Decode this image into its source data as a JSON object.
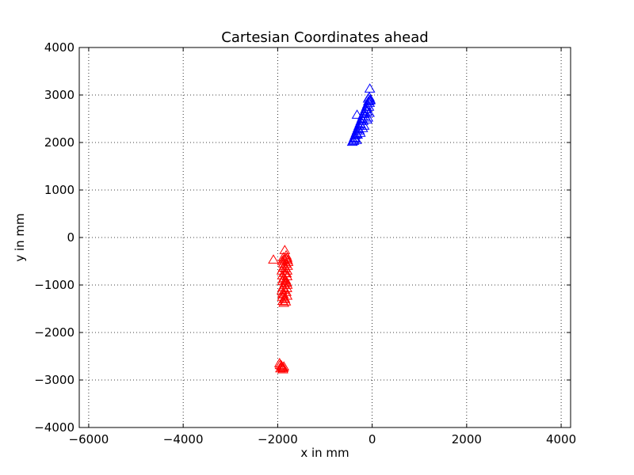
{
  "chart_data": {
    "type": "scatter",
    "title": "Cartesian Coordinates ahead",
    "xlabel": "x in mm",
    "ylabel": "y in mm",
    "xlim": [
      -6200,
      4200
    ],
    "ylim": [
      -4000,
      4000
    ],
    "xticks": [
      -6000,
      -4000,
      -2000,
      0,
      2000,
      4000
    ],
    "yticks": [
      -4000,
      -3000,
      -2000,
      -1000,
      0,
      1000,
      2000,
      3000,
      4000
    ],
    "xtick_labels": [
      "−6000",
      "−4000",
      "−2000",
      "0",
      "2000",
      "4000"
    ],
    "ytick_labels": [
      "−4000",
      "−3000",
      "−2000",
      "−1000",
      "0",
      "1000",
      "2000",
      "3000",
      "4000"
    ],
    "grid": true,
    "marker": "triangle-open",
    "series": [
      {
        "color": "#0000ff",
        "points": [
          [
            -50,
            3130
          ],
          [
            -320,
            2580
          ],
          [
            -60,
            2950
          ],
          [
            -40,
            2900
          ],
          [
            -80,
            2860
          ],
          [
            -100,
            2800
          ],
          [
            -120,
            2750
          ],
          [
            -140,
            2700
          ],
          [
            -160,
            2650
          ],
          [
            -180,
            2600
          ],
          [
            -200,
            2550
          ],
          [
            -220,
            2500
          ],
          [
            -240,
            2450
          ],
          [
            -260,
            2400
          ],
          [
            -280,
            2350
          ],
          [
            -300,
            2300
          ],
          [
            -320,
            2250
          ],
          [
            -340,
            2200
          ],
          [
            -360,
            2150
          ],
          [
            -380,
            2100
          ],
          [
            -400,
            2050
          ],
          [
            -390,
            2030
          ],
          [
            -350,
            2080
          ],
          [
            -310,
            2160
          ],
          [
            -270,
            2250
          ],
          [
            -230,
            2350
          ],
          [
            -190,
            2450
          ],
          [
            -150,
            2550
          ],
          [
            -110,
            2650
          ],
          [
            -70,
            2750
          ],
          [
            -55,
            2830
          ],
          [
            -45,
            2880
          ],
          [
            -85,
            2920
          ],
          [
            -125,
            2700
          ],
          [
            -165,
            2600
          ],
          [
            -205,
            2480
          ],
          [
            -245,
            2380
          ],
          [
            -285,
            2280
          ],
          [
            -325,
            2180
          ],
          [
            -365,
            2080
          ],
          [
            -420,
            2010
          ],
          [
            -330,
            2050
          ],
          [
            -250,
            2200
          ],
          [
            -170,
            2350
          ],
          [
            -90,
            2520
          ],
          [
            -60,
            2620
          ],
          [
            -110,
            2480
          ],
          [
            -200,
            2300
          ]
        ]
      },
      {
        "color": "#ff0000",
        "points": [
          [
            -2090,
            -470
          ],
          [
            -1850,
            -270
          ],
          [
            -1800,
            -430
          ],
          [
            -1790,
            -480
          ],
          [
            -1820,
            -380
          ],
          [
            -1880,
            -420
          ],
          [
            -1900,
            -500
          ],
          [
            -1880,
            -550
          ],
          [
            -1860,
            -600
          ],
          [
            -1840,
            -650
          ],
          [
            -1800,
            -700
          ],
          [
            -1850,
            -750
          ],
          [
            -1900,
            -800
          ],
          [
            -1870,
            -850
          ],
          [
            -1830,
            -900
          ],
          [
            -1810,
            -950
          ],
          [
            -1860,
            -1000
          ],
          [
            -1890,
            -1050
          ],
          [
            -1850,
            -1100
          ],
          [
            -1820,
            -1150
          ],
          [
            -1880,
            -1200
          ],
          [
            -1900,
            -1250
          ],
          [
            -1850,
            -1300
          ],
          [
            -1830,
            -1350
          ],
          [
            -1870,
            -1380
          ],
          [
            -1910,
            -700
          ],
          [
            -1790,
            -600
          ],
          [
            -1800,
            -820
          ],
          [
            -1900,
            -920
          ],
          [
            -1795,
            -1000
          ],
          [
            -1910,
            -1120
          ],
          [
            -1800,
            -1230
          ],
          [
            -1860,
            -470
          ],
          [
            -1830,
            -560
          ],
          [
            -1885,
            -640
          ],
          [
            -1815,
            -760
          ],
          [
            -1875,
            -880
          ],
          [
            -1845,
            -960
          ],
          [
            -1805,
            -1070
          ],
          [
            -1895,
            -1180
          ],
          [
            -1855,
            -1280
          ],
          [
            -1890,
            -1340
          ],
          [
            -1825,
            -450
          ],
          [
            -1780,
            -520
          ],
          [
            -1960,
            -2650
          ],
          [
            -1920,
            -2700
          ],
          [
            -1900,
            -2740
          ],
          [
            -1870,
            -2720
          ],
          [
            -1940,
            -2760
          ],
          [
            -1890,
            -2780
          ],
          [
            -1950,
            -2690
          ],
          [
            -1880,
            -2750
          ],
          [
            -1910,
            -2720
          ]
        ]
      }
    ]
  }
}
